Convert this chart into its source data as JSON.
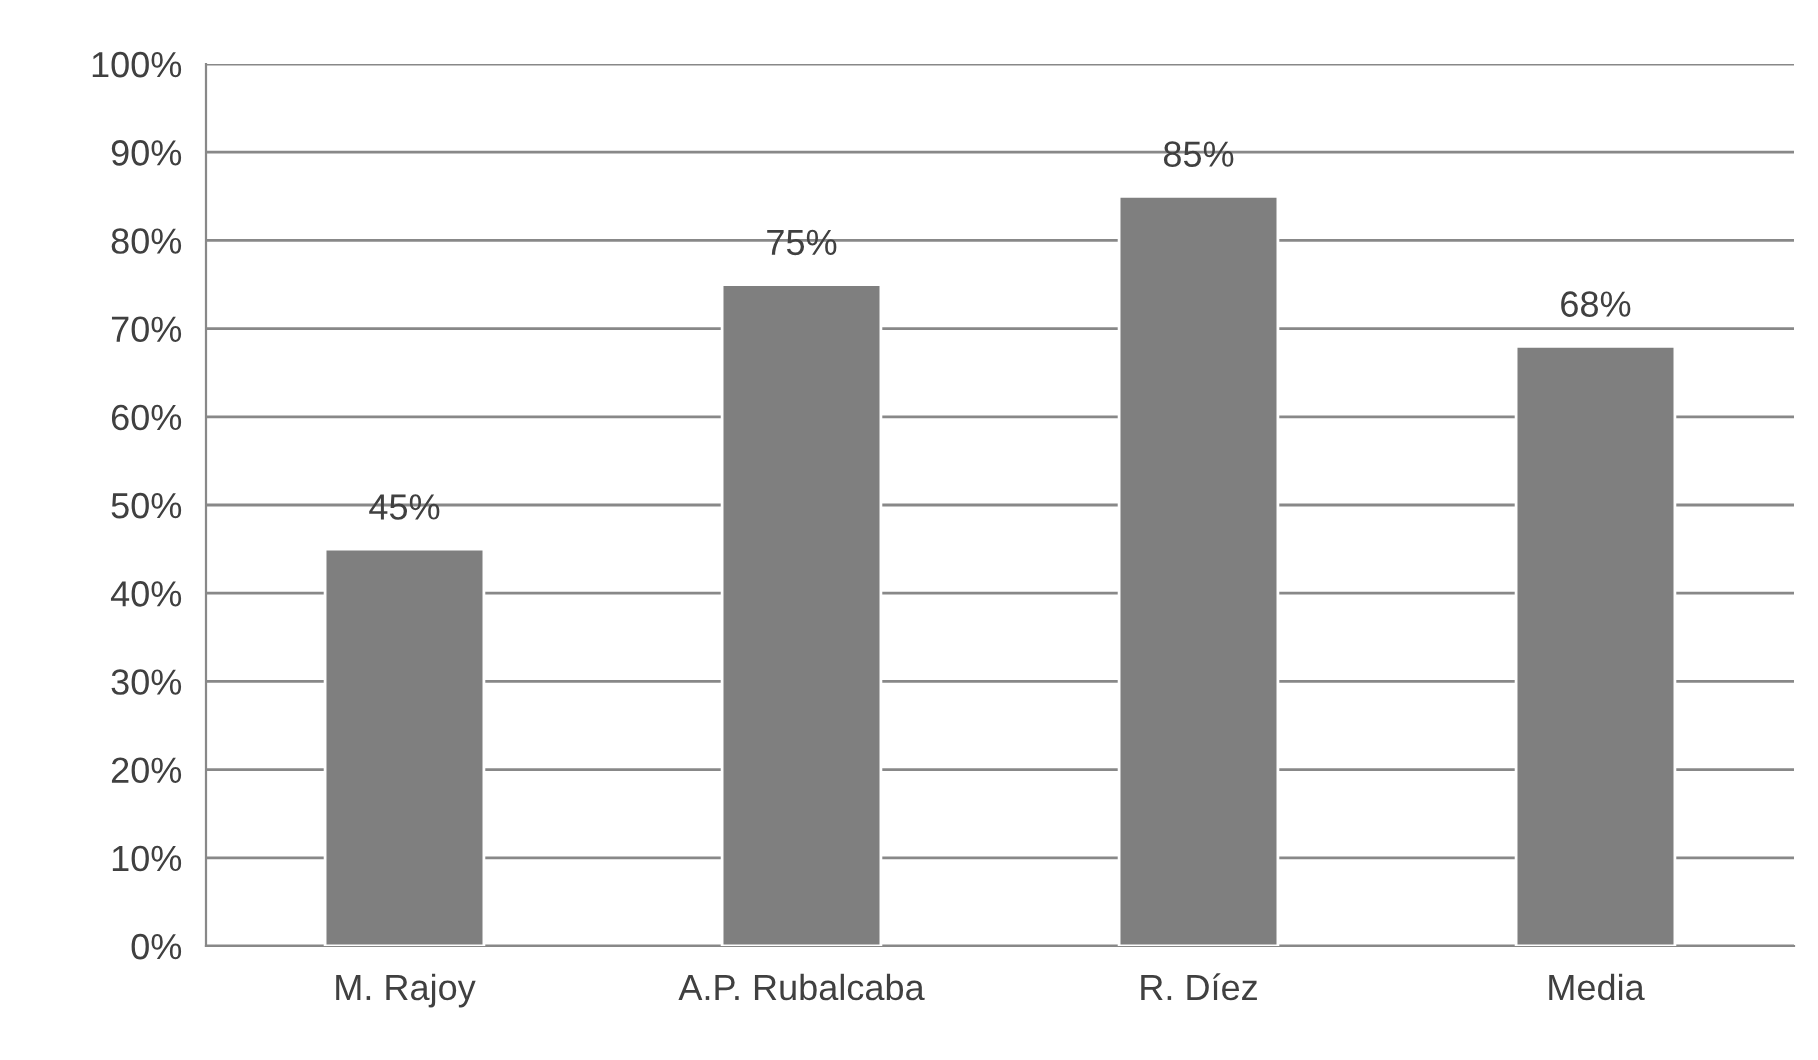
{
  "chart_data": {
    "type": "bar",
    "categories": [
      "M. Rajoy",
      "A.P. Rubalcaba",
      "R. Díez",
      "Media"
    ],
    "values": [
      45,
      75,
      85,
      68
    ],
    "value_labels": [
      "45%",
      "75%",
      "85%",
      "68%"
    ],
    "color": "#7f7f7f",
    "ylim": [
      0,
      100
    ],
    "yticks": [
      {
        "value": 0,
        "label": "0%"
      },
      {
        "value": 10,
        "label": "10%"
      },
      {
        "value": 20,
        "label": "20%"
      },
      {
        "value": 30,
        "label": "30%"
      },
      {
        "value": 40,
        "label": "40%"
      },
      {
        "value": 50,
        "label": "50%"
      },
      {
        "value": 60,
        "label": "60%"
      },
      {
        "value": 70,
        "label": "70%"
      },
      {
        "value": 80,
        "label": "80%"
      },
      {
        "value": 90,
        "label": "90%"
      },
      {
        "value": 100,
        "label": "100%"
      }
    ],
    "grid": "y",
    "legend": false
  }
}
